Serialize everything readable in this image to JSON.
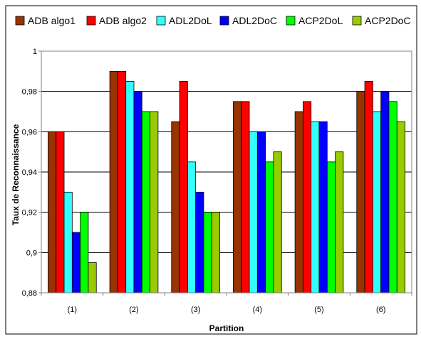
{
  "chart_data": {
    "type": "bar",
    "categories": [
      "(1)",
      "(2)",
      "(3)",
      "(4)",
      "(5)",
      "(6)"
    ],
    "series": [
      {
        "name": "ADB algo1",
        "color": "#993300",
        "values": [
          0.96,
          0.99,
          0.965,
          0.975,
          0.97,
          0.98
        ]
      },
      {
        "name": "ADB algo2",
        "color": "#ff0000",
        "values": [
          0.96,
          0.99,
          0.985,
          0.975,
          0.975,
          0.985
        ]
      },
      {
        "name": "ADL2DoL",
        "color": "#33ffff",
        "values": [
          0.93,
          0.985,
          0.945,
          0.96,
          0.965,
          0.97
        ]
      },
      {
        "name": "ADL2DoC",
        "color": "#0000ff",
        "values": [
          0.91,
          0.98,
          0.93,
          0.96,
          0.965,
          0.98
        ]
      },
      {
        "name": "ACP2DoL",
        "color": "#00ff00",
        "values": [
          0.92,
          0.97,
          0.92,
          0.945,
          0.945,
          0.975
        ]
      },
      {
        "name": "ACP2DoC",
        "color": "#99cc00",
        "values": [
          0.895,
          0.97,
          0.92,
          0.95,
          0.95,
          0.965
        ]
      }
    ],
    "xlabel": "Partition",
    "ylabel": "Taux de Reconnaissance",
    "ylim": [
      0.88,
      1.0
    ],
    "yticks": [
      "0,88",
      "0,9",
      "0,92",
      "0,94",
      "0,96",
      "0,98",
      "1"
    ],
    "grid": true,
    "legend_position": "top"
  }
}
